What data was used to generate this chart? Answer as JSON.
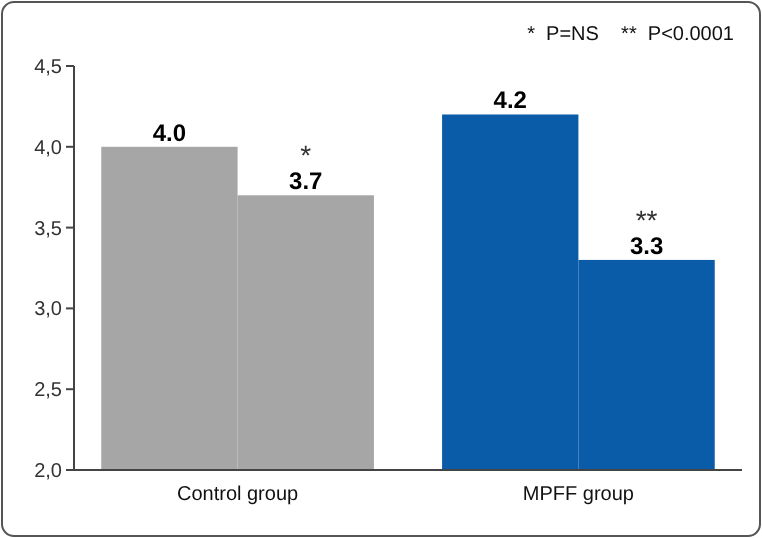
{
  "chart_data": {
    "type": "bar",
    "categories": [
      "Control group",
      "MPFF group"
    ],
    "series": [
      {
        "colors": [
          "#a6a6a6",
          "#0a5ca8"
        ],
        "values": [
          4.0,
          4.2
        ],
        "value_labels": [
          "4.0",
          "4.2"
        ]
      },
      {
        "colors": [
          "#a6a6a6",
          "#0a5ca8"
        ],
        "values": [
          3.7,
          3.3
        ],
        "value_labels": [
          "3.7",
          "3.3"
        ]
      }
    ],
    "ylim": [
      2,
      4.5
    ],
    "yticks": [
      {
        "value": 2,
        "label": "2,0"
      },
      {
        "value": 2.5,
        "label": "2,5"
      },
      {
        "value": 3,
        "label": "3,0"
      },
      {
        "value": 3.5,
        "label": "3,5"
      },
      {
        "value": 4,
        "label": "4,0"
      },
      {
        "value": 4.5,
        "label": "4,5"
      }
    ],
    "grid": false,
    "annotations": [
      "*  P=NS    **  P<0.0001",
      {
        "text": "*",
        "x": "Control group",
        "y": 3.7
      },
      {
        "text": "**",
        "x": "MPFF group",
        "y": 3.3
      }
    ]
  }
}
